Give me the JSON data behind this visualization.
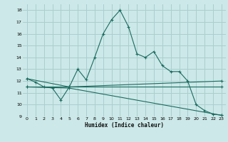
{
  "xlabel": "Humidex (Indice chaleur)",
  "bg_color": "#cce8e8",
  "grid_color": "#aacece",
  "line_color": "#1a6b5e",
  "series1": [
    [
      0,
      12.2
    ],
    [
      1,
      11.9
    ],
    [
      2,
      11.5
    ],
    [
      3,
      11.4
    ],
    [
      4,
      10.4
    ],
    [
      5,
      11.5
    ],
    [
      6,
      13.0
    ],
    [
      7,
      12.1
    ],
    [
      8,
      14.0
    ],
    [
      9,
      16.0
    ],
    [
      10,
      17.2
    ],
    [
      11,
      18.0
    ],
    [
      12,
      16.6
    ],
    [
      13,
      14.3
    ],
    [
      14,
      14.0
    ],
    [
      15,
      14.5
    ],
    [
      16,
      13.3
    ],
    [
      17,
      12.8
    ],
    [
      18,
      12.8
    ],
    [
      19,
      12.0
    ],
    [
      20,
      10.0
    ],
    [
      21,
      9.5
    ],
    [
      22,
      9.2
    ],
    [
      23,
      9.1
    ]
  ],
  "series2": [
    [
      0,
      12.2
    ],
    [
      5,
      11.5
    ],
    [
      23,
      12.0
    ]
  ],
  "series3": [
    [
      0,
      11.5
    ],
    [
      5,
      11.5
    ],
    [
      23,
      11.5
    ]
  ],
  "series4": [
    [
      0,
      11.5
    ],
    [
      5,
      11.4
    ],
    [
      23,
      9.1
    ]
  ],
  "ylim": [
    9,
    18.5
  ],
  "xlim": [
    -0.5,
    23.5
  ],
  "yticks": [
    9,
    10,
    11,
    12,
    13,
    14,
    15,
    16,
    17,
    18
  ],
  "xticks": [
    0,
    1,
    2,
    3,
    4,
    5,
    6,
    7,
    8,
    9,
    10,
    11,
    12,
    13,
    14,
    15,
    16,
    17,
    18,
    19,
    20,
    21,
    22,
    23
  ]
}
